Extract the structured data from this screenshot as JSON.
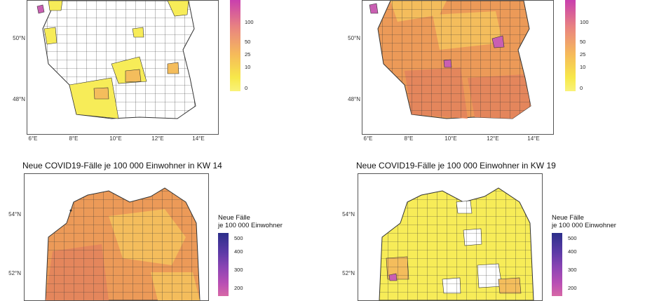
{
  "panels": [
    {
      "id": "top-left",
      "title": "",
      "lat_labels": [
        "50°N",
        "48°N"
      ],
      "lon_labels": [
        "6°E",
        "8°E",
        "10°E",
        "12°E",
        "14°E"
      ],
      "legend_title": [
        "",
        ""
      ],
      "legend_ticks": [
        "100",
        "50",
        "25",
        "10",
        "0"
      ],
      "legend_gradient": [
        "#c93fae",
        "#e98480",
        "#f6bb5a",
        "#f7e84a",
        "#f9f27a"
      ]
    },
    {
      "id": "top-right",
      "title": "",
      "lat_labels": [
        "50°N",
        "48°N"
      ],
      "lon_labels": [
        "6°E",
        "8°E",
        "10°E",
        "12°E",
        "14°E"
      ],
      "legend_title": [
        "",
        ""
      ],
      "legend_ticks": [
        "100",
        "50",
        "25",
        "10",
        "0"
      ],
      "legend_gradient": [
        "#c93fae",
        "#e98480",
        "#f6bb5a",
        "#f7e84a",
        "#f9f27a"
      ]
    },
    {
      "id": "bottom-left",
      "title": "Neue COVID19-Fälle je 100 000 Einwohner in KW 14",
      "lat_labels": [
        "54°N",
        "52°N"
      ],
      "lon_labels": [],
      "legend_title": [
        "Neue Fälle",
        "je 100 000 Einwohner"
      ],
      "legend_ticks": [
        "500",
        "400",
        "300",
        "200"
      ],
      "legend_gradient": [
        "#2c2f8a",
        "#5b3aa6",
        "#8c45b4",
        "#b94fb4",
        "#d768a6"
      ]
    },
    {
      "id": "bottom-right",
      "title": "Neue COVID19-Fälle je 100 000 Einwohner in KW 19",
      "lat_labels": [
        "54°N",
        "52°N"
      ],
      "lon_labels": [],
      "legend_title": [
        "Neue Fälle",
        "je 100 000 Einwohner"
      ],
      "legend_ticks": [
        "500",
        "400",
        "300",
        "200"
      ],
      "legend_gradient": [
        "#2c2f8a",
        "#5b3aa6",
        "#8c45b4",
        "#b94fb4",
        "#d768a6"
      ]
    }
  ],
  "colors": {
    "none": "#ffffff",
    "low": "#f7ec58",
    "mid": "#f4bd5c",
    "high": "#ec9a58",
    "higher": "#e4865c",
    "hot": "#c95fb2",
    "border": "#333333"
  }
}
